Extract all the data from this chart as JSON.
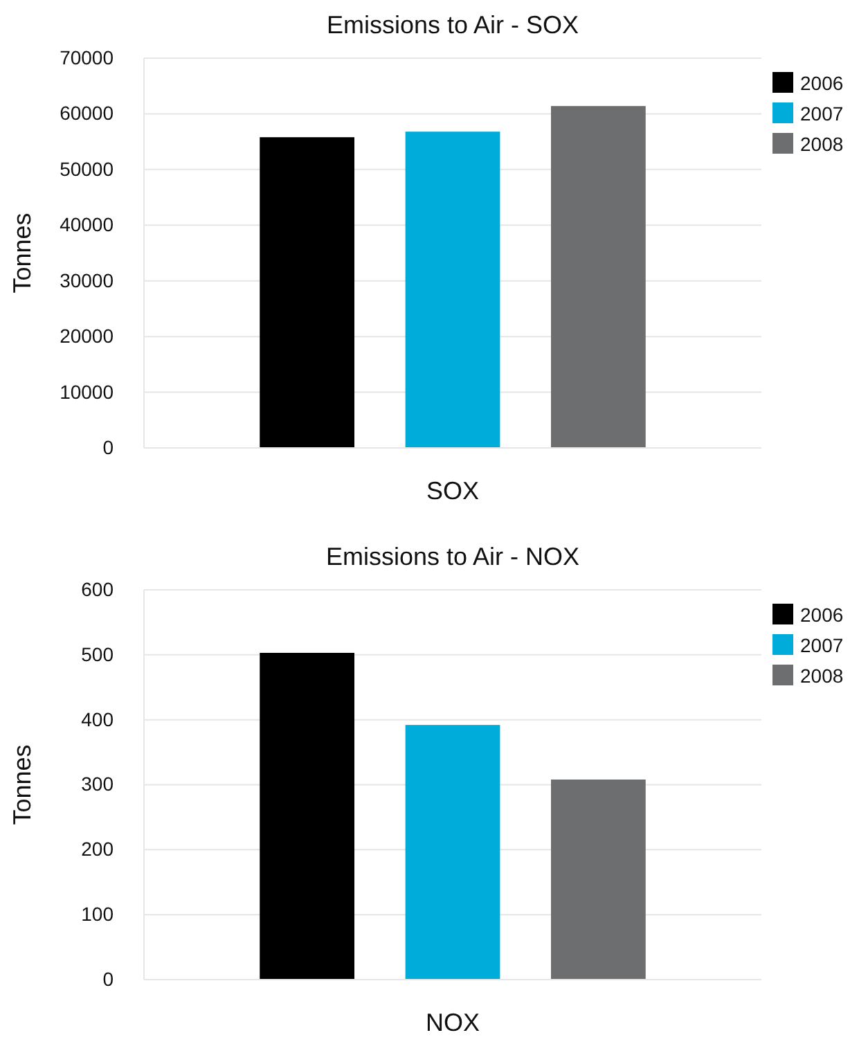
{
  "chart_data": [
    {
      "type": "bar",
      "title": "Emissions to Air - SOX",
      "ylabel": "Tonnes",
      "categories": [
        "SOX"
      ],
      "series": [
        {
          "name": "2006",
          "color": "#000000",
          "values": [
            55800
          ]
        },
        {
          "name": "2007",
          "color": "#00acd9",
          "values": [
            56800
          ]
        },
        {
          "name": "2008",
          "color": "#6d6e70",
          "values": [
            61400
          ]
        }
      ],
      "ylim": [
        0,
        70000
      ],
      "yticks": [
        0,
        10000,
        20000,
        30000,
        40000,
        50000,
        60000,
        70000
      ],
      "grid": "y",
      "legend": "top right"
    },
    {
      "type": "bar",
      "title": "Emissions to Air - NOX",
      "ylabel": "Tonnes",
      "categories": [
        "NOX"
      ],
      "series": [
        {
          "name": "2006",
          "color": "#000000",
          "values": [
            503
          ]
        },
        {
          "name": "2007",
          "color": "#00acd9",
          "values": [
            392
          ]
        },
        {
          "name": "2008",
          "color": "#6d6e70",
          "values": [
            308
          ]
        }
      ],
      "ylim": [
        0,
        600
      ],
      "yticks": [
        0,
        100,
        200,
        300,
        400,
        500,
        600
      ],
      "grid": "y",
      "legend": "top right"
    }
  ]
}
